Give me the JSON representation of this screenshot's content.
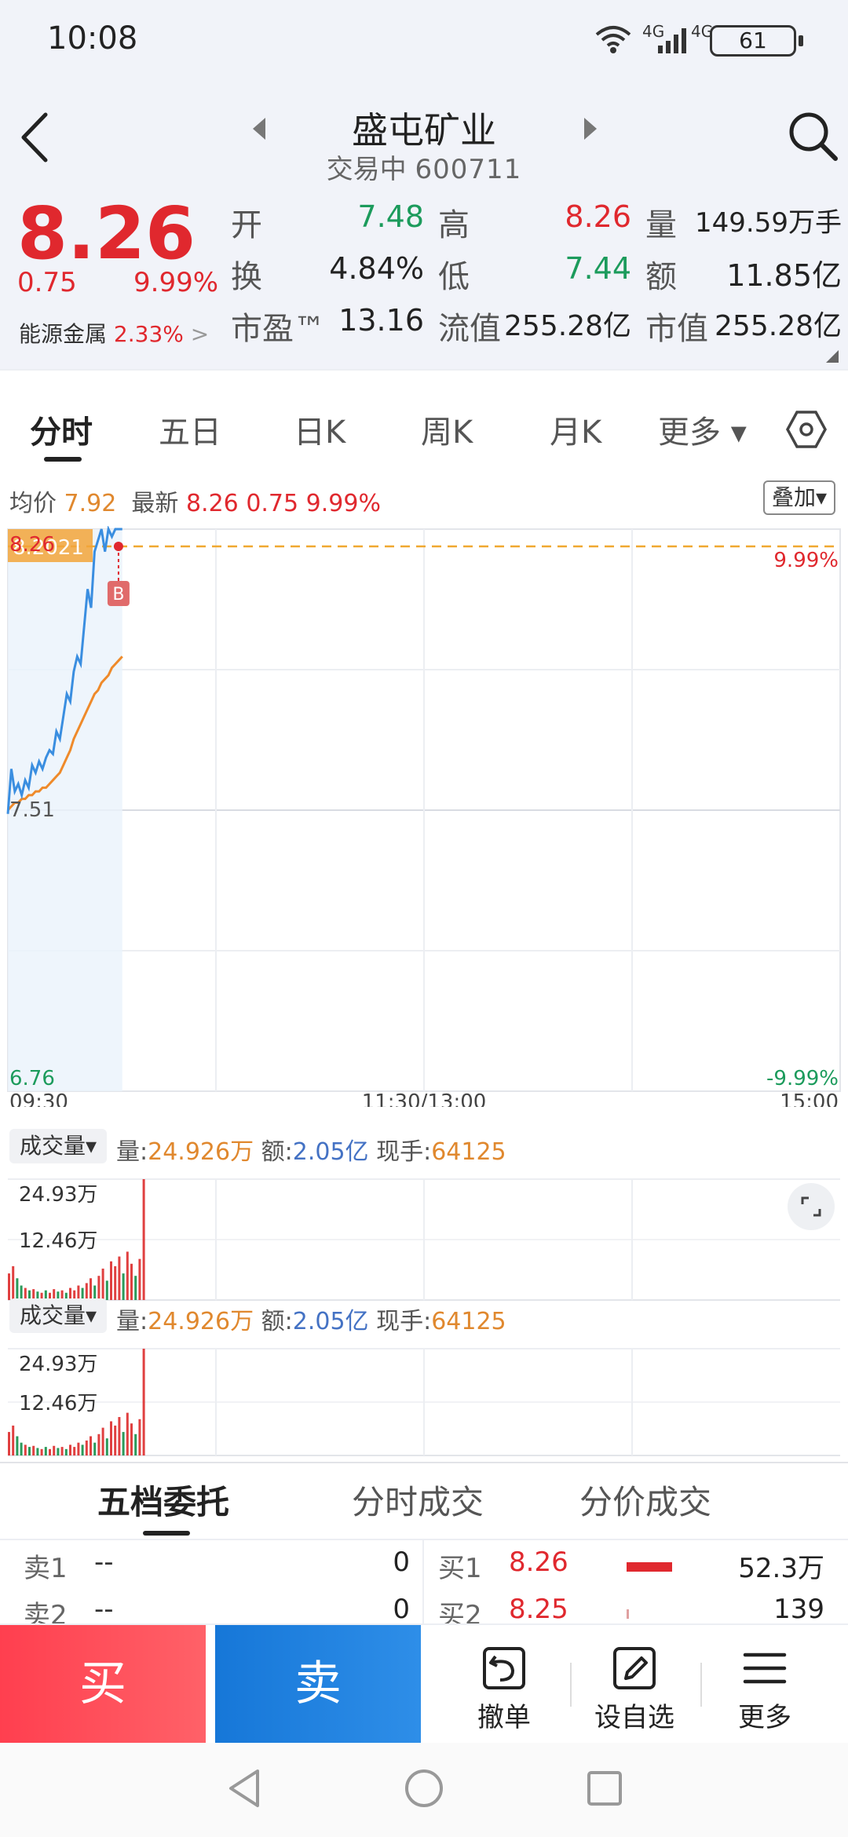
{
  "status_bar": {
    "time": "10:08",
    "signal_1_label": "4G",
    "signal_2_label": "4G",
    "battery": "61"
  },
  "header": {
    "title": "盛屯矿业",
    "status": "交易中",
    "code": "600711"
  },
  "quote": {
    "price": "8.26",
    "change": "0.75",
    "change_pct": "9.99%",
    "sector_name": "能源金属",
    "sector_pct": "2.33%",
    "sector_arrow": ">",
    "fields": {
      "open_label": "开",
      "open": "7.48",
      "high_label": "高",
      "high": "8.26",
      "vol_label": "量",
      "vol": "149.59万手",
      "turnover_label": "换",
      "turnover": "4.84%",
      "low_label": "低",
      "low": "7.44",
      "amount_label": "额",
      "amount": "11.85亿",
      "pe_label": "市盈™",
      "pe": "13.16",
      "float_label": "流值",
      "float_cap": "255.28亿",
      "mcap_label": "市值",
      "mcap": "255.28亿"
    }
  },
  "tabs": [
    "分时",
    "五日",
    "日K",
    "周K",
    "月K",
    "更多 ▾"
  ],
  "chart_info": {
    "avg_label": "均价",
    "avg": "7.92",
    "latest_label": "最新",
    "latest": "8.26",
    "change": "0.75",
    "change_pct": "9.99%",
    "overlay_label": "叠加▾"
  },
  "chart_data": {
    "type": "line",
    "ylim": [
      6.76,
      8.26
    ],
    "y_tick_labels": {
      "top": "8.26",
      "mid": "7.51",
      "bottom": "6.76"
    },
    "right_tick_labels": {
      "top": "9.99%",
      "bottom": "-9.99%"
    },
    "price_tag": "8.2021",
    "marker_label": "B",
    "x_tick_labels": [
      "09:30",
      "11:30/13:00",
      "15:00"
    ],
    "series": [
      {
        "values": [
          7.5,
          7.62,
          7.56,
          7.58,
          7.55,
          7.59,
          7.57,
          7.63,
          7.61,
          7.64,
          7.62,
          7.65,
          7.67,
          7.66,
          7.72,
          7.7,
          7.76,
          7.82,
          7.8,
          7.88,
          7.92,
          7.9,
          8.0,
          8.1,
          8.05,
          8.2,
          8.23,
          8.26,
          8.2,
          8.26,
          8.24,
          8.26,
          8.26,
          8.26
        ]
      },
      {
        "values": [
          7.51,
          7.52,
          7.53,
          7.53,
          7.54,
          7.54,
          7.55,
          7.55,
          7.56,
          7.56,
          7.57,
          7.57,
          7.58,
          7.59,
          7.6,
          7.61,
          7.63,
          7.65,
          7.67,
          7.7,
          7.72,
          7.74,
          7.76,
          7.78,
          7.8,
          7.82,
          7.83,
          7.85,
          7.86,
          7.87,
          7.89,
          7.9,
          7.91,
          7.92
        ]
      }
    ]
  },
  "volume_panels": [
    {
      "button": "成交量▾",
      "vol_label": "量:",
      "vol": "24.926万",
      "amt_label": "额:",
      "amt": "2.05亿",
      "hand_label": "现手:",
      "hand": "64125",
      "y_top": "24.93万",
      "y_mid": "12.46万",
      "expand_icon": "expand-icon"
    },
    {
      "button": "成交量▾",
      "vol_label": "量:",
      "vol": "24.926万",
      "amt_label": "额:",
      "amt": "2.05亿",
      "hand_label": "现手:",
      "hand": "64125",
      "y_top": "24.93万",
      "y_mid": "12.46万"
    }
  ],
  "volume_data": [
    {
      "v": 0.22,
      "up": true
    },
    {
      "v": 0.28,
      "up": true
    },
    {
      "v": 0.18,
      "up": false
    },
    {
      "v": 0.12,
      "up": false
    },
    {
      "v": 0.1,
      "up": true
    },
    {
      "v": 0.08,
      "up": false
    },
    {
      "v": 0.09,
      "up": true
    },
    {
      "v": 0.07,
      "up": false
    },
    {
      "v": 0.06,
      "up": true
    },
    {
      "v": 0.08,
      "up": false
    },
    {
      "v": 0.06,
      "up": true
    },
    {
      "v": 0.09,
      "up": true
    },
    {
      "v": 0.07,
      "up": false
    },
    {
      "v": 0.08,
      "up": true
    },
    {
      "v": 0.06,
      "up": false
    },
    {
      "v": 0.1,
      "up": true
    },
    {
      "v": 0.08,
      "up": true
    },
    {
      "v": 0.12,
      "up": true
    },
    {
      "v": 0.1,
      "up": false
    },
    {
      "v": 0.14,
      "up": true
    },
    {
      "v": 0.18,
      "up": true
    },
    {
      "v": 0.12,
      "up": false
    },
    {
      "v": 0.2,
      "up": true
    },
    {
      "v": 0.26,
      "up": true
    },
    {
      "v": 0.16,
      "up": false
    },
    {
      "v": 0.32,
      "up": true
    },
    {
      "v": 0.28,
      "up": true
    },
    {
      "v": 0.36,
      "up": true
    },
    {
      "v": 0.22,
      "up": false
    },
    {
      "v": 0.4,
      "up": true
    },
    {
      "v": 0.3,
      "up": true
    },
    {
      "v": 0.2,
      "up": false
    },
    {
      "v": 0.34,
      "up": true
    },
    {
      "v": 1.0,
      "up": true
    }
  ],
  "order_book": {
    "tabs": [
      "五档委托",
      "分时成交",
      "分价成交"
    ],
    "sell": [
      {
        "label": "卖1",
        "price": "--",
        "qty": "0"
      },
      {
        "label": "卖2",
        "price": "--",
        "qty": "0"
      }
    ],
    "buy": [
      {
        "label": "买1",
        "price": "8.26",
        "qty": "52.3万",
        "bar": 1.0
      },
      {
        "label": "买2",
        "price": "8.25",
        "qty": "139",
        "bar": 0.03
      }
    ]
  },
  "bottom_bar": {
    "buy": "买",
    "sell": "卖",
    "cancel": "撤单",
    "watchlist": "设自选",
    "more": "更多"
  }
}
